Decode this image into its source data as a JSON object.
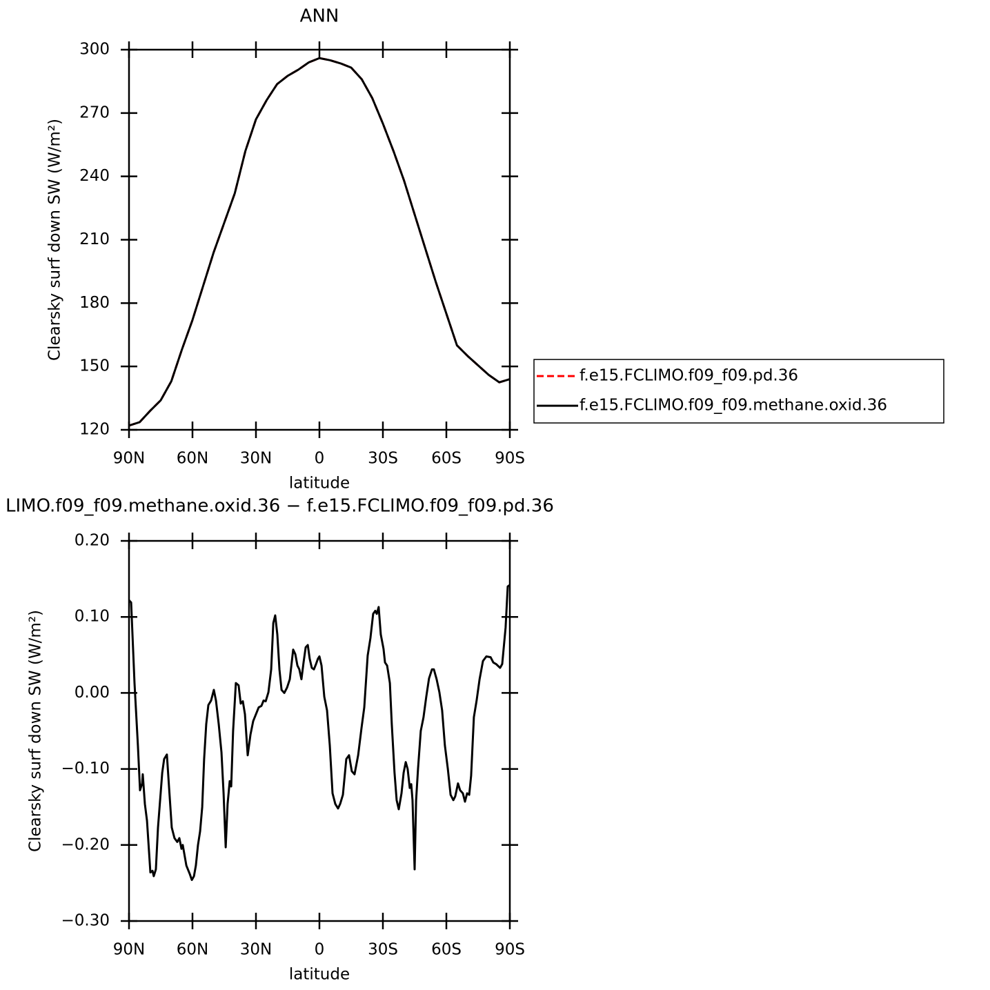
{
  "chart_data": [
    {
      "type": "line",
      "title": "ANN",
      "x_label": "latitude",
      "y_label": "Clearsky surf down SW (W/m²)",
      "xlim": [
        90,
        -90
      ],
      "xticks": [
        {
          "value": 90,
          "label": "90N"
        },
        {
          "value": 60,
          "label": "60N"
        },
        {
          "value": 30,
          "label": "30N"
        },
        0,
        {
          "value": -30,
          "label": "30S"
        },
        {
          "value": -60,
          "label": "60S"
        },
        {
          "value": -90,
          "label": "90S"
        }
      ],
      "ylim": [
        120,
        300
      ],
      "yticks": [
        120,
        150,
        180,
        210,
        240,
        270,
        300
      ],
      "legend": "right",
      "x": [
        90,
        85,
        80,
        75,
        70,
        65,
        60,
        55,
        50,
        45,
        40,
        35,
        30,
        25,
        20,
        15,
        10,
        5,
        0,
        -5,
        -10,
        -15,
        -20,
        -25,
        -30,
        -35,
        -40,
        -45,
        -50,
        -55,
        -60,
        -65,
        -70,
        -75,
        -80,
        -85,
        -90
      ],
      "series": [
        {
          "name": "f.e15.FCLIMO.f09_f09.pd.36",
          "color": "#ff0000",
          "dashed": true,
          "values": [
            122,
            123.6,
            129,
            134,
            143,
            158,
            172,
            188,
            204,
            218,
            232,
            252,
            267,
            276,
            283.7,
            287.6,
            290.5,
            294,
            296,
            295,
            293.5,
            291.5,
            286,
            277,
            265,
            252,
            238,
            222,
            206,
            190,
            175,
            160,
            155,
            150.5,
            146,
            142.5,
            144
          ]
        },
        {
          "name": "f.e15.FCLIMO.f09_f09.methane.oxid.36",
          "color": "#000000",
          "dashed": false,
          "values": [
            122,
            123.6,
            129,
            134,
            143,
            158,
            172,
            188,
            204,
            218,
            232,
            252,
            267,
            276,
            283.7,
            287.6,
            290.5,
            294,
            296,
            295,
            293.5,
            291.5,
            286,
            277,
            265,
            252,
            238,
            222,
            206,
            190,
            175,
            160,
            155,
            150.5,
            146,
            142.5,
            144
          ]
        }
      ]
    },
    {
      "type": "line",
      "title": "LIMO.f09_f09.methane.oxid.36 − f.e15.FCLIMO.f09_f09.pd.36",
      "x_label": "latitude",
      "y_label": "Clearsky surf down SW (W/m²)",
      "xlim": [
        90,
        -90
      ],
      "xticks": [
        {
          "value": 90,
          "label": "90N"
        },
        {
          "value": 60,
          "label": "60N"
        },
        {
          "value": 30,
          "label": "30N"
        },
        0,
        {
          "value": -30,
          "label": "30S"
        },
        {
          "value": -60,
          "label": "60S"
        },
        {
          "value": -90,
          "label": "90S"
        }
      ],
      "ylim": [
        -0.3,
        0.2
      ],
      "yticks": [
        {
          "value": -0.3,
          "label": "−0.30"
        },
        {
          "value": -0.2,
          "label": "−0.20"
        },
        {
          "value": -0.1,
          "label": "−0.10"
        },
        {
          "value": 0,
          "label": "0.00"
        },
        {
          "value": 0.1,
          "label": "0.10"
        },
        {
          "value": 0.2,
          "label": "0.20"
        }
      ],
      "x": [
        90,
        89.0,
        87.4,
        85.8,
        84.8,
        83.8,
        83.5,
        82.5,
        81.5,
        79.9,
        78.9,
        78.3,
        77.3,
        76.3,
        74.3,
        73.4,
        72.1,
        71.1,
        69.8,
        68.5,
        67.2,
        66.2,
        65.2,
        64.6,
        62.9,
        61.3,
        60.3,
        59.3,
        58.4,
        57.4,
        56.4,
        55.4,
        54.5,
        53.5,
        52.5,
        51.2,
        49.9,
        48.9,
        47.6,
        46.3,
        45.3,
        44.3,
        43.4,
        42.4,
        41.7,
        40.8,
        39.5,
        38.2,
        37.2,
        36.2,
        35.2,
        33.9,
        32.6,
        31.3,
        30.0,
        28.7,
        27.4,
        26.4,
        25.4,
        24.1,
        22.8,
        21.8,
        20.9,
        19.9,
        18.9,
        17.9,
        16.6,
        15.3,
        14.0,
        12.4,
        11.4,
        10.4,
        9.5,
        8.5,
        7.5,
        6.5,
        5.5,
        4.6,
        3.6,
        2.6,
        1.6,
        0.7,
        0.0,
        -1.0,
        -2.3,
        -3.6,
        -4.9,
        -6.2,
        -7.5,
        -8.8,
        -9.8,
        -11.1,
        -12.7,
        -14.0,
        -15.3,
        -16.6,
        -18.3,
        -19.9,
        -21.2,
        -22.8,
        -24.1,
        -25.4,
        -26.4,
        -27.1,
        -28.0,
        -29.0,
        -30.3,
        -31.0,
        -32.0,
        -33.3,
        -34.2,
        -35.5,
        -36.5,
        -37.5,
        -38.8,
        -39.8,
        -40.8,
        -41.7,
        -42.7,
        -43.4,
        -44.0,
        -45.0,
        -45.7,
        -46.6,
        -47.9,
        -49.2,
        -50.5,
        -51.8,
        -53.2,
        -54.1,
        -55.4,
        -56.7,
        -58.0,
        -59.3,
        -60.7,
        -62.0,
        -63.3,
        -64.2,
        -65.5,
        -66.5,
        -67.8,
        -68.8,
        -69.8,
        -70.8,
        -71.7,
        -73.0,
        -74.3,
        -75.7,
        -77.3,
        -78.9,
        -80.9,
        -82.2,
        -83.5,
        -85.4,
        -86.4,
        -88.0,
        -89.0,
        -90.0
      ],
      "series": [
        {
          "color": "#000000",
          "dashed": false,
          "values": [
            0.122,
            0.119,
            0.013,
            -0.069,
            -0.128,
            -0.119,
            -0.107,
            -0.146,
            -0.168,
            -0.236,
            -0.234,
            -0.241,
            -0.232,
            -0.177,
            -0.105,
            -0.087,
            -0.081,
            -0.123,
            -0.177,
            -0.191,
            -0.196,
            -0.191,
            -0.205,
            -0.2,
            -0.227,
            -0.238,
            -0.246,
            -0.241,
            -0.227,
            -0.2,
            -0.182,
            -0.15,
            -0.087,
            -0.041,
            -0.016,
            -0.01,
            0.004,
            -0.01,
            -0.041,
            -0.078,
            -0.132,
            -0.203,
            -0.146,
            -0.116,
            -0.123,
            -0.05,
            0.013,
            0.01,
            -0.014,
            -0.011,
            -0.028,
            -0.082,
            -0.055,
            -0.037,
            -0.028,
            -0.019,
            -0.017,
            -0.01,
            -0.011,
            0.001,
            0.031,
            0.092,
            0.102,
            0.077,
            0.031,
            0.004,
            0.0,
            0.007,
            0.018,
            0.057,
            0.051,
            0.036,
            0.031,
            0.018,
            0.04,
            0.06,
            0.063,
            0.045,
            0.033,
            0.031,
            0.038,
            0.045,
            0.048,
            0.036,
            -0.005,
            -0.023,
            -0.069,
            -0.132,
            -0.146,
            -0.152,
            -0.146,
            -0.134,
            -0.087,
            -0.082,
            -0.103,
            -0.107,
            -0.082,
            -0.046,
            -0.019,
            0.049,
            0.072,
            0.104,
            0.108,
            0.104,
            0.113,
            0.077,
            0.058,
            0.04,
            0.036,
            0.013,
            -0.041,
            -0.105,
            -0.141,
            -0.153,
            -0.132,
            -0.105,
            -0.091,
            -0.1,
            -0.125,
            -0.12,
            -0.141,
            -0.232,
            -0.141,
            -0.1,
            -0.05,
            -0.032,
            -0.005,
            0.019,
            0.031,
            0.031,
            0.018,
            0.001,
            -0.023,
            -0.069,
            -0.1,
            -0.134,
            -0.141,
            -0.136,
            -0.119,
            -0.128,
            -0.132,
            -0.143,
            -0.132,
            -0.134,
            -0.109,
            -0.032,
            -0.01,
            0.018,
            0.042,
            0.048,
            0.047,
            0.04,
            0.038,
            0.033,
            0.038,
            0.086,
            0.14,
            0.142
          ]
        }
      ]
    }
  ]
}
